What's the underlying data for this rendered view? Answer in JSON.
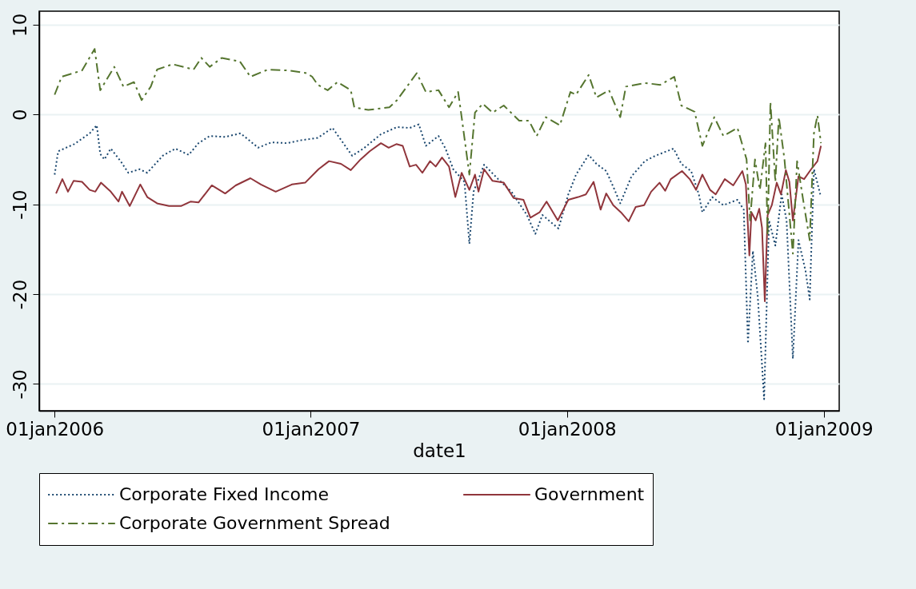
{
  "chart_data": {
    "type": "line",
    "xlabel": "date1",
    "xlim": [
      "2005-12-10",
      "2009-01-23"
    ],
    "xticks": [
      {
        "value": "2006-01-01",
        "label": "01jan2006"
      },
      {
        "value": "2007-01-01",
        "label": "01jan2007"
      },
      {
        "value": "2008-01-01",
        "label": "01jan2008"
      },
      {
        "value": "2009-01-01",
        "label": "01jan2009"
      }
    ],
    "ylim": [
      -33,
      11.5
    ],
    "yticks": [
      -30,
      -20,
      -10,
      0,
      10
    ],
    "grid": "y",
    "legend": "bottom",
    "series": [
      {
        "name": "Corporate Fixed Income",
        "color": "#1a476f",
        "line_style": "dotted",
        "x": [
          "2006-01-01",
          "2006-01-06",
          "2006-01-29",
          "2006-02-20",
          "2006-03-02",
          "2006-03-07",
          "2006-03-13",
          "2006-03-22",
          "2006-04-05",
          "2006-04-16",
          "2006-05-02",
          "2006-05-13",
          "2006-06-04",
          "2006-06-22",
          "2006-07-11",
          "2006-07-25",
          "2006-08-10",
          "2006-09-01",
          "2006-09-23",
          "2006-10-18",
          "2006-11-06",
          "2006-11-28",
          "2006-12-16",
          "2007-01-11",
          "2007-02-01",
          "2007-03-01",
          "2007-03-17",
          "2007-04-11",
          "2007-05-04",
          "2007-05-22",
          "2007-06-04",
          "2007-06-14",
          "2007-07-02",
          "2007-07-12",
          "2007-07-23",
          "2007-08-08",
          "2007-08-15",
          "2007-08-21",
          "2007-09-05",
          "2007-09-25",
          "2007-10-14",
          "2007-11-05",
          "2007-11-17",
          "2007-11-27",
          "2007-12-20",
          "2008-01-03",
          "2008-01-14",
          "2008-02-01",
          "2008-02-12",
          "2008-02-26",
          "2008-03-09",
          "2008-03-17",
          "2008-04-02",
          "2008-04-21",
          "2008-05-06",
          "2008-06-01",
          "2008-06-12",
          "2008-06-26",
          "2008-07-07",
          "2008-07-12",
          "2008-07-26",
          "2008-08-11",
          "2008-08-31",
          "2008-09-09",
          "2008-09-15",
          "2008-09-22",
          "2008-09-29",
          "2008-10-08",
          "2008-10-15",
          "2008-10-24",
          "2008-11-02",
          "2008-11-09",
          "2008-11-18",
          "2008-11-26",
          "2008-12-06",
          "2008-12-12",
          "2008-12-18",
          "2008-12-27"
        ],
        "values": [
          -6.7,
          -4.1,
          -3.3,
          -2.1,
          -1.2,
          -4.4,
          -5.0,
          -3.8,
          -5.2,
          -6.5,
          -6.1,
          -6.5,
          -4.6,
          -3.8,
          -4.5,
          -3.2,
          -2.4,
          -2.5,
          -2.1,
          -3.7,
          -3.1,
          -3.2,
          -2.9,
          -2.6,
          -1.5,
          -4.6,
          -3.8,
          -2.2,
          -1.4,
          -1.5,
          -1.1,
          -3.5,
          -2.4,
          -3.8,
          -6.1,
          -7.5,
          -14.4,
          -8.6,
          -5.6,
          -7.2,
          -8.6,
          -11.2,
          -13.3,
          -11.2,
          -12.7,
          -8.9,
          -6.7,
          -4.5,
          -5.5,
          -6.3,
          -8.4,
          -9.9,
          -6.9,
          -5.2,
          -4.6,
          -3.8,
          -5.5,
          -6.3,
          -8.9,
          -10.9,
          -9.2,
          -10.1,
          -9.5,
          -10.6,
          -25.5,
          -15.2,
          -20.3,
          -31.7,
          -11.8,
          -14.6,
          -8.9,
          -11.8,
          -27.2,
          -14.0,
          -17.4,
          -20.6,
          -6.1,
          -8.9
        ]
      },
      {
        "name": "Government",
        "color": "#90353b",
        "line_style": "solid",
        "x": [
          "2006-01-03",
          "2006-01-12",
          "2006-01-20",
          "2006-01-28",
          "2006-02-09",
          "2006-02-20",
          "2006-02-28",
          "2006-03-08",
          "2006-03-22",
          "2006-04-02",
          "2006-04-07",
          "2006-04-18",
          "2006-05-03",
          "2006-05-13",
          "2006-05-27",
          "2006-06-13",
          "2006-06-30",
          "2006-07-14",
          "2006-07-25",
          "2006-08-13",
          "2006-09-01",
          "2006-09-16",
          "2006-10-07",
          "2006-10-22",
          "2006-11-12",
          "2006-12-05",
          "2006-12-24",
          "2007-01-12",
          "2007-01-27",
          "2007-02-13",
          "2007-02-27",
          "2007-03-13",
          "2007-03-26",
          "2007-04-11",
          "2007-04-22",
          "2007-05-03",
          "2007-05-12",
          "2007-05-22",
          "2007-05-31",
          "2007-06-09",
          "2007-06-20",
          "2007-06-28",
          "2007-07-07",
          "2007-07-17",
          "2007-07-26",
          "2007-08-04",
          "2007-08-15",
          "2007-08-23",
          "2007-08-28",
          "2007-09-05",
          "2007-09-17",
          "2007-10-03",
          "2007-10-17",
          "2007-10-31",
          "2007-11-10",
          "2007-11-23",
          "2007-12-03",
          "2007-12-19",
          "2008-01-03",
          "2008-01-17",
          "2008-01-28",
          "2008-02-08",
          "2008-02-18",
          "2008-02-26",
          "2008-03-07",
          "2008-03-18",
          "2008-03-29",
          "2008-04-08",
          "2008-04-20",
          "2008-04-30",
          "2008-05-12",
          "2008-05-20",
          "2008-05-28",
          "2008-06-13",
          "2008-06-24",
          "2008-07-03",
          "2008-07-12",
          "2008-07-23",
          "2008-07-31",
          "2008-08-13",
          "2008-08-25",
          "2008-09-07",
          "2008-09-12",
          "2008-09-17",
          "2008-09-20",
          "2008-09-26",
          "2008-10-01",
          "2008-10-05",
          "2008-10-09",
          "2008-10-13",
          "2008-10-19",
          "2008-10-26",
          "2008-11-01",
          "2008-11-08",
          "2008-11-13",
          "2008-11-18",
          "2008-11-26",
          "2008-12-04",
          "2008-12-14",
          "2008-12-23",
          "2008-12-28"
        ],
        "values": [
          -8.8,
          -7.2,
          -8.6,
          -7.4,
          -7.5,
          -8.4,
          -8.6,
          -7.6,
          -8.6,
          -9.7,
          -8.6,
          -10.2,
          -7.8,
          -9.2,
          -9.9,
          -10.2,
          -10.2,
          -9.7,
          -9.8,
          -7.9,
          -8.8,
          -7.9,
          -7.1,
          -7.8,
          -8.6,
          -7.8,
          -7.6,
          -6.1,
          -5.2,
          -5.5,
          -6.2,
          -5.0,
          -4.1,
          -3.2,
          -3.7,
          -3.3,
          -3.5,
          -5.8,
          -5.6,
          -6.5,
          -5.2,
          -5.8,
          -4.8,
          -5.8,
          -9.2,
          -6.5,
          -8.4,
          -6.7,
          -8.6,
          -6.1,
          -7.4,
          -7.6,
          -9.3,
          -9.5,
          -11.5,
          -10.9,
          -9.7,
          -11.8,
          -9.5,
          -9.2,
          -8.9,
          -7.5,
          -10.6,
          -8.8,
          -10.1,
          -10.9,
          -11.9,
          -10.3,
          -10.1,
          -8.6,
          -7.6,
          -8.5,
          -7.2,
          -6.3,
          -7.2,
          -8.4,
          -6.7,
          -8.4,
          -8.9,
          -7.2,
          -7.9,
          -6.3,
          -7.8,
          -15.7,
          -10.9,
          -11.8,
          -10.5,
          -12.6,
          -20.8,
          -11.2,
          -10.1,
          -7.6,
          -8.9,
          -6.2,
          -7.5,
          -11.8,
          -6.9,
          -7.2,
          -6.1,
          -5.2,
          -3.5
        ]
      },
      {
        "name": "Corporate Government Spread",
        "color": "#55752f",
        "line_style": "dashed",
        "x": [
          "2006-01-01",
          "2006-01-11",
          "2006-02-09",
          "2006-02-27",
          "2006-03-07",
          "2006-03-27",
          "2006-04-09",
          "2006-04-24",
          "2006-05-05",
          "2006-05-18",
          "2006-05-27",
          "2006-06-18",
          "2006-07-18",
          "2006-07-29",
          "2006-08-10",
          "2006-08-27",
          "2006-09-22",
          "2006-10-07",
          "2006-11-01",
          "2006-12-01",
          "2006-12-26",
          "2007-01-03",
          "2007-01-11",
          "2007-01-25",
          "2007-02-08",
          "2007-02-27",
          "2007-03-04",
          "2007-03-24",
          "2007-04-23",
          "2007-05-04",
          "2007-05-18",
          "2007-06-01",
          "2007-06-14",
          "2007-07-02",
          "2007-07-17",
          "2007-07-30",
          "2007-08-04",
          "2007-08-15",
          "2007-08-23",
          "2007-09-03",
          "2007-09-17",
          "2007-10-03",
          "2007-10-25",
          "2007-11-08",
          "2007-11-19",
          "2007-12-02",
          "2007-12-22",
          "2008-01-06",
          "2008-01-14",
          "2008-02-01",
          "2008-02-12",
          "2008-03-01",
          "2008-03-17",
          "2008-03-25",
          "2008-04-21",
          "2008-05-13",
          "2008-06-02",
          "2008-06-12",
          "2008-07-01",
          "2008-07-12",
          "2008-07-29",
          "2008-08-11",
          "2008-08-31",
          "2008-09-13",
          "2008-09-18",
          "2008-09-25",
          "2008-10-02",
          "2008-10-10",
          "2008-10-13",
          "2008-10-17",
          "2008-10-24",
          "2008-10-29",
          "2008-11-06",
          "2008-11-18",
          "2008-11-24",
          "2008-12-03",
          "2008-12-12",
          "2008-12-18",
          "2008-12-23",
          "2008-12-28"
        ],
        "values": [
          2.2,
          4.2,
          4.9,
          7.3,
          2.7,
          5.3,
          3.1,
          3.6,
          1.6,
          3.1,
          5.0,
          5.6,
          5.0,
          6.3,
          5.3,
          6.3,
          5.9,
          4.2,
          5.0,
          4.9,
          4.6,
          4.2,
          3.3,
          2.7,
          3.6,
          2.7,
          0.8,
          0.5,
          0.8,
          1.6,
          3.1,
          4.6,
          2.5,
          2.7,
          0.8,
          2.5,
          -0.3,
          -6.7,
          0.2,
          1.2,
          0.2,
          1.0,
          -0.7,
          -0.7,
          -2.4,
          -0.3,
          -1.2,
          2.5,
          2.2,
          4.4,
          1.9,
          2.7,
          -0.3,
          3.1,
          3.5,
          3.3,
          4.2,
          1.0,
          0.3,
          -3.5,
          -0.3,
          -2.4,
          -1.5,
          -5.0,
          -11.8,
          -5.0,
          -8.4,
          -3.2,
          -13.5,
          1.4,
          -7.5,
          -0.3,
          -5.0,
          -15.5,
          -5.2,
          -9.7,
          -14.0,
          -2.1,
          -0.1,
          -3.2
        ]
      }
    ]
  }
}
